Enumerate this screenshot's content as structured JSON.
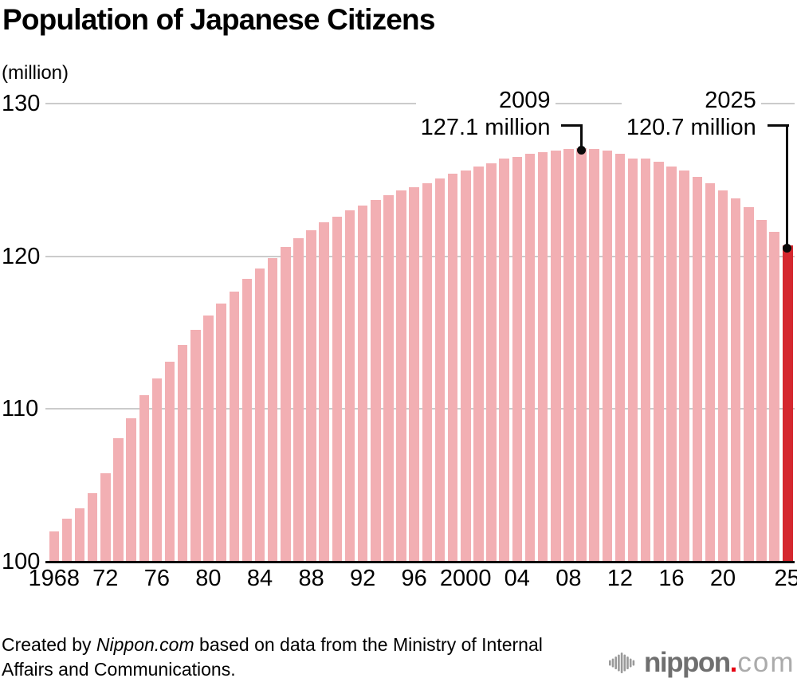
{
  "header": {
    "title": "Population of Japanese Citizens",
    "unit_label": "(million)"
  },
  "footer": {
    "credit_prefix": "Created by ",
    "credit_brand": "Nippon.com",
    "credit_suffix": " based on data from the Ministry of Internal",
    "credit_line2": "Affairs and Communications."
  },
  "logo": {
    "icon": "soundwave-bars-icon",
    "name": "nippon",
    "dot": ".",
    "tld": "com",
    "name_color": "#6f6f6f",
    "dot_color": "#e60012",
    "tld_color": "#ababab"
  },
  "colors": {
    "bar": "#F2AFB3",
    "bar_highlight": "#D4272E",
    "gridline": "#CBCBCB",
    "axis_line": "#0a0a0a",
    "text": "#000000"
  },
  "chart_data": {
    "type": "bar",
    "title": "Population of Japanese Citizens",
    "ylabel": "(million)",
    "ylim": [
      100,
      130
    ],
    "y_ticks": [
      100,
      110,
      120,
      130
    ],
    "grid": "horizontal",
    "x_ticks": [
      {
        "label": "1968",
        "year": 1968
      },
      {
        "label": "72",
        "year": 1972
      },
      {
        "label": "76",
        "year": 1976
      },
      {
        "label": "80",
        "year": 1980
      },
      {
        "label": "84",
        "year": 1984
      },
      {
        "label": "88",
        "year": 1988
      },
      {
        "label": "92",
        "year": 1992
      },
      {
        "label": "96",
        "year": 1996
      },
      {
        "label": "2000",
        "year": 2000
      },
      {
        "label": "04",
        "year": 2004
      },
      {
        "label": "08",
        "year": 2008
      },
      {
        "label": "12",
        "year": 2012
      },
      {
        "label": "16",
        "year": 2016
      },
      {
        "label": "20",
        "year": 2020
      },
      {
        "label": "25",
        "year": 2025
      }
    ],
    "years": [
      1968,
      1969,
      1970,
      1971,
      1972,
      1973,
      1974,
      1975,
      1976,
      1977,
      1978,
      1979,
      1980,
      1981,
      1982,
      1983,
      1984,
      1985,
      1986,
      1987,
      1988,
      1989,
      1990,
      1991,
      1992,
      1993,
      1994,
      1995,
      1996,
      1997,
      1998,
      1999,
      2000,
      2001,
      2002,
      2003,
      2004,
      2005,
      2006,
      2007,
      2008,
      2009,
      2010,
      2011,
      2012,
      2013,
      2014,
      2015,
      2016,
      2017,
      2018,
      2019,
      2020,
      2021,
      2022,
      2023,
      2024,
      2025
    ],
    "values": [
      102.0,
      102.8,
      103.5,
      104.5,
      105.8,
      108.1,
      109.4,
      110.9,
      112.0,
      113.1,
      114.2,
      115.2,
      116.1,
      116.9,
      117.7,
      118.5,
      119.2,
      119.9,
      120.6,
      121.2,
      121.7,
      122.2,
      122.6,
      123.0,
      123.3,
      123.7,
      124.0,
      124.3,
      124.5,
      124.8,
      125.1,
      125.4,
      125.6,
      125.9,
      126.1,
      126.4,
      126.5,
      126.7,
      126.8,
      126.9,
      127.0,
      127.1,
      127.0,
      126.9,
      126.7,
      126.4,
      126.4,
      126.2,
      125.9,
      125.6,
      125.2,
      124.8,
      124.3,
      123.8,
      123.2,
      122.4,
      121.6,
      120.7
    ],
    "highlight_year": 2025,
    "annotations": [
      {
        "year": 2009,
        "year_label": "2009",
        "value_label": "127.1 million"
      },
      {
        "year": 2025,
        "year_label": "2025",
        "value_label": "120.7 million"
      }
    ]
  }
}
